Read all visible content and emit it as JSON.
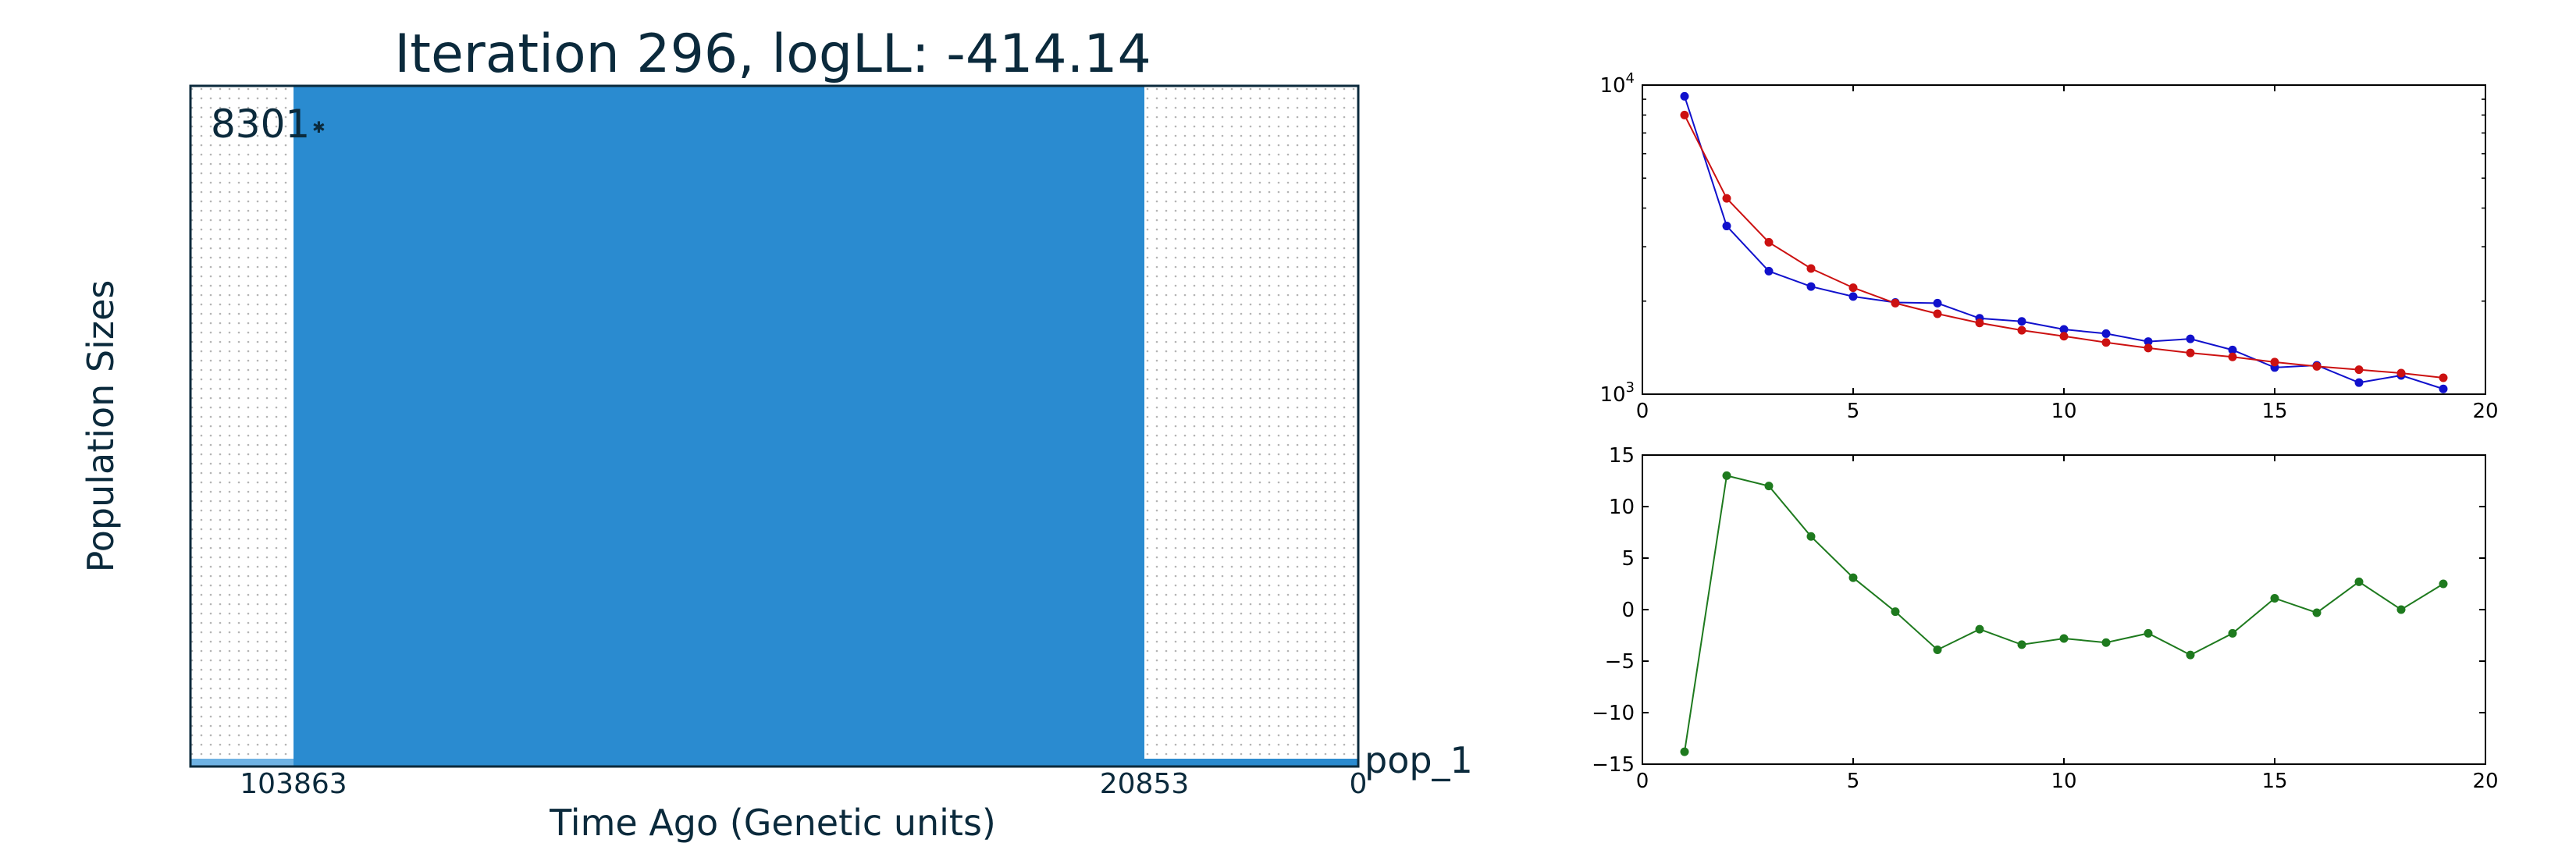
{
  "colors": {
    "text": "#0b2a3c",
    "fill": "#2a8bd0",
    "dot": "#b4b4b4",
    "frame": "#0b2a3c",
    "blue": "#1111cc",
    "red": "#cc1111",
    "green": "#1e7a1e",
    "axis": "#000000"
  },
  "left_panel": {
    "title": "Iteration 296, logLL:    -414.14",
    "ylabel": "Population Sizes",
    "xlabel": "Time Ago (Genetic units)",
    "pop_label": "pop_1",
    "size_label": "8301",
    "tick_labels": [
      "103863",
      "20853",
      "0"
    ]
  },
  "chart_data": [
    {
      "type": "line",
      "scale_y": "log",
      "xlim": [
        0,
        20
      ],
      "ylim": [
        1000,
        10000
      ],
      "x_ticks": [
        "0",
        "5",
        "10",
        "15",
        "20"
      ],
      "y_ticks": [
        "10^3",
        "10^4"
      ],
      "x": [
        1,
        2,
        3,
        4,
        5,
        6,
        7,
        8,
        9,
        10,
        11,
        12,
        13,
        14,
        15,
        16,
        17,
        18,
        19
      ],
      "series": [
        {
          "color": "blue",
          "values": [
            9200,
            3500,
            2500,
            2230,
            2070,
            1980,
            1970,
            1760,
            1720,
            1620,
            1570,
            1480,
            1510,
            1390,
            1220,
            1240,
            1090,
            1150,
            1040
          ]
        },
        {
          "color": "red",
          "values": [
            8000,
            4300,
            3100,
            2550,
            2210,
            1970,
            1820,
            1700,
            1610,
            1540,
            1470,
            1410,
            1360,
            1320,
            1270,
            1230,
            1200,
            1170,
            1130
          ]
        }
      ]
    },
    {
      "type": "line",
      "xlim": [
        0,
        20
      ],
      "ylim": [
        -15,
        15
      ],
      "x_ticks": [
        "0",
        "5",
        "10",
        "15",
        "20"
      ],
      "y_ticks": [
        "−15",
        "−10",
        "−5",
        "0",
        "5",
        "10",
        "15"
      ],
      "x": [
        1,
        2,
        3,
        4,
        5,
        6,
        7,
        8,
        9,
        10,
        11,
        12,
        13,
        14,
        15,
        16,
        17,
        18,
        19
      ],
      "series": [
        {
          "color": "green",
          "values": [
            -13.8,
            13.0,
            12.0,
            7.1,
            3.1,
            -0.2,
            -3.9,
            -1.9,
            -3.4,
            -2.8,
            -3.2,
            -2.3,
            -4.4,
            -2.3,
            1.1,
            -0.3,
            2.7,
            0.0,
            2.5
          ]
        }
      ]
    }
  ]
}
